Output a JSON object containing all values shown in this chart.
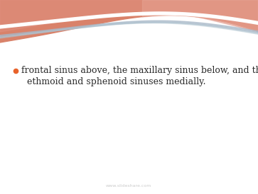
{
  "slide_bg": "#ffffff",
  "bullet_text_line1": "frontal sinus above, the maxillary sinus below, and the",
  "bullet_text_line2": "ethmoid and sphenoid sinuses medially.",
  "bullet_color": "#e8622a",
  "text_color": "#2a2a2a",
  "font_size": 9.0,
  "watermark": "www.slideshare.com",
  "watermark_color": "#cccccc",
  "watermark_size": 4.5,
  "wave_salmon_color": "#d9826a",
  "wave_salmon2_color": "#e09080",
  "wave_pink_color": "#e8a898",
  "wave_white_line": "#ffffff",
  "wave_blue_color": "#a8b8c8",
  "wave_blue2_color": "#b0c4d0"
}
